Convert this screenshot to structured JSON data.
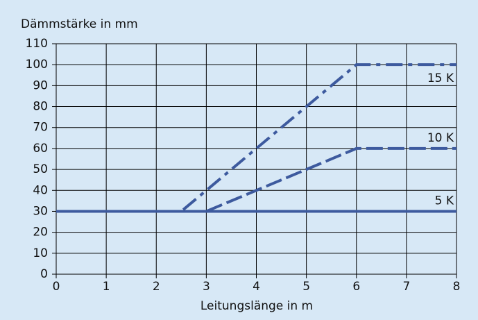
{
  "chart_data": {
    "type": "line",
    "ylabel": "Dämmstärke in mm",
    "xlabel": "Leitungslänge in m",
    "xlim": [
      0,
      8
    ],
    "xticks": [
      0,
      1,
      2,
      3,
      4,
      5,
      6,
      7,
      8
    ],
    "ylim": [
      0,
      110
    ],
    "yticks": [
      0,
      10,
      20,
      30,
      40,
      50,
      60,
      70,
      80,
      90,
      100,
      110
    ],
    "grid": true,
    "series": [
      {
        "name": "5 K",
        "color": "#3d5a9e",
        "linestyle": "solid",
        "x": [
          0,
          8
        ],
        "values": [
          30,
          30
        ]
      },
      {
        "name": "10 K",
        "color": "#3d5a9e",
        "linestyle": "dashed",
        "x": [
          0,
          3,
          6,
          8
        ],
        "values": [
          30,
          30,
          60,
          60
        ]
      },
      {
        "name": "15 K",
        "color": "#3d5a9e",
        "linestyle": "dashdot",
        "x": [
          0,
          2.5,
          6,
          8
        ],
        "values": [
          30,
          30,
          100,
          100
        ]
      }
    ]
  }
}
